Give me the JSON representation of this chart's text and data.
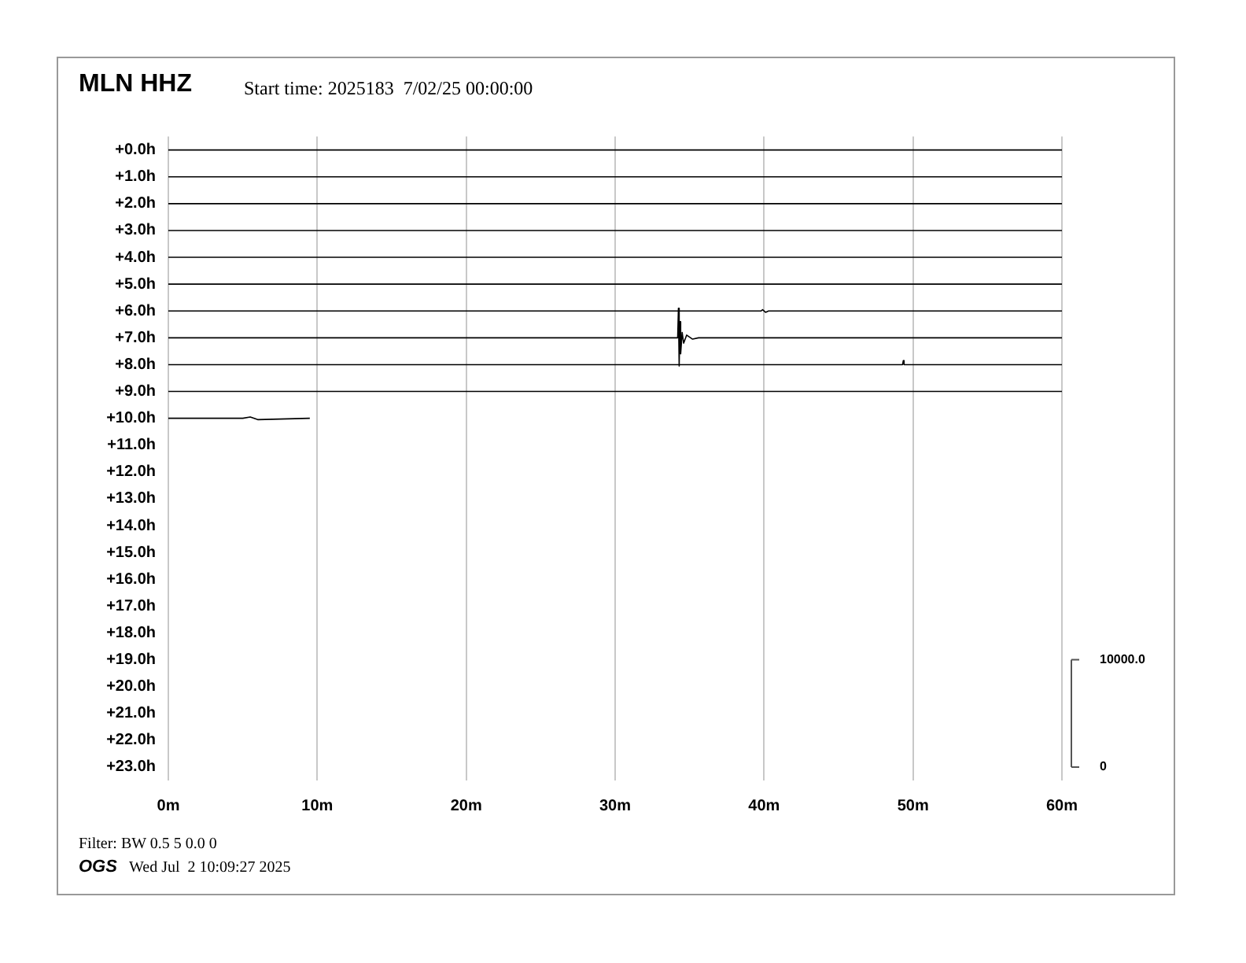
{
  "chart_data": {
    "type": "line",
    "title": "MLN HHZ",
    "subtitle": "Start time: 2025183  7/02/25 00:00:00",
    "annotations": [
      "Filter: BW 0.5 5 0.0 0",
      "OGS",
      "Wed Jul  2 10:09:27 2025"
    ],
    "xlim": [
      0,
      60
    ],
    "xticks": [
      {
        "value": 0,
        "label": "0m"
      },
      {
        "value": 10,
        "label": "10m"
      },
      {
        "value": 20,
        "label": "20m"
      },
      {
        "value": 30,
        "label": "30m"
      },
      {
        "value": 40,
        "label": "40m"
      },
      {
        "value": 50,
        "label": "50m"
      },
      {
        "value": 60,
        "label": "60m"
      }
    ],
    "ylim": [
      23.5,
      -0.5
    ],
    "yticks": [
      {
        "value": 0,
        "label": "+0.0h"
      },
      {
        "value": 1,
        "label": "+1.0h"
      },
      {
        "value": 2,
        "label": "+2.0h"
      },
      {
        "value": 3,
        "label": "+3.0h"
      },
      {
        "value": 4,
        "label": "+4.0h"
      },
      {
        "value": 5,
        "label": "+5.0h"
      },
      {
        "value": 6,
        "label": "+6.0h"
      },
      {
        "value": 7,
        "label": "+7.0h"
      },
      {
        "value": 8,
        "label": "+8.0h"
      },
      {
        "value": 9,
        "label": "+9.0h"
      },
      {
        "value": 10,
        "label": "+10.0h"
      },
      {
        "value": 11,
        "label": "+11.0h"
      },
      {
        "value": 12,
        "label": "+12.0h"
      },
      {
        "value": 13,
        "label": "+13.0h"
      },
      {
        "value": 14,
        "label": "+14.0h"
      },
      {
        "value": 15,
        "label": "+15.0h"
      },
      {
        "value": 16,
        "label": "+16.0h"
      },
      {
        "value": 17,
        "label": "+17.0h"
      },
      {
        "value": 18,
        "label": "+18.0h"
      },
      {
        "value": 19,
        "label": "+19.0h"
      },
      {
        "value": 20,
        "label": "+20.0h"
      },
      {
        "value": 21,
        "label": "+21.0h"
      },
      {
        "value": 22,
        "label": "+22.0h"
      },
      {
        "value": 23,
        "label": "+23.0h"
      }
    ],
    "y2lim": [
      -1250,
      58750
    ],
    "y2ticks": [
      {
        "value": 0,
        "label": "0"
      },
      {
        "value": 10000,
        "label": "10000.0"
      }
    ],
    "grid": "x",
    "legend": false,
    "marker": "none",
    "line_style": "solid",
    "series": [
      {
        "color": "#000000",
        "x": [
          0,
          60
        ],
        "values": [
          0,
          0
        ]
      },
      {
        "color": "#000000",
        "x": [
          0,
          60
        ],
        "values": [
          1,
          1
        ]
      },
      {
        "color": "#000000",
        "x": [
          0,
          60
        ],
        "values": [
          2,
          2
        ]
      },
      {
        "color": "#000000",
        "x": [
          0,
          60
        ],
        "values": [
          3,
          3
        ]
      },
      {
        "color": "#000000",
        "x": [
          0,
          60
        ],
        "values": [
          4,
          4
        ]
      },
      {
        "color": "#000000",
        "x": [
          0,
          60
        ],
        "values": [
          5,
          5
        ]
      },
      {
        "color": "#000000",
        "x": [
          0,
          39.8,
          39.9,
          40.1,
          40.3,
          60
        ],
        "values": [
          6,
          6,
          5.95,
          6.05,
          6,
          6
        ]
      },
      {
        "color": "#000000",
        "x": [
          0,
          34.2,
          34.25,
          34.3,
          34.35,
          34.4,
          34.5,
          34.6,
          34.8,
          35.2,
          35.6,
          60
        ],
        "values": [
          7,
          7,
          5.9,
          8.05,
          6.4,
          7.6,
          6.8,
          7.2,
          6.9,
          7.05,
          7,
          7
        ]
      },
      {
        "color": "#000000",
        "x": [
          0,
          49.3,
          49.35,
          49.4,
          60
        ],
        "values": [
          8,
          8,
          7.85,
          8,
          8
        ]
      },
      {
        "color": "#000000",
        "x": [
          0,
          60
        ],
        "values": [
          9,
          9
        ]
      },
      {
        "color": "#000000",
        "x": [
          0,
          5,
          5.5,
          6,
          9.5
        ],
        "values": [
          10,
          10,
          9.95,
          10.05,
          10
        ]
      }
    ]
  }
}
